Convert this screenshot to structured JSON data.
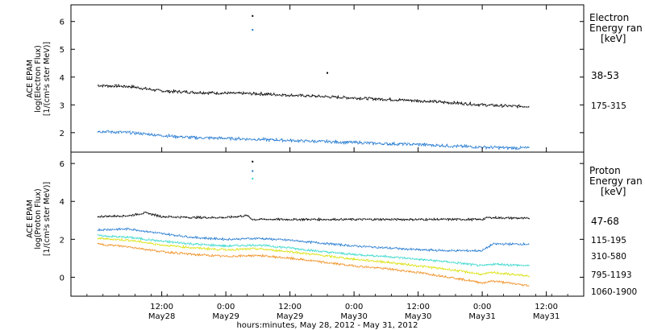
{
  "xaxis": {
    "caption": "hours:minutes, May 28, 2012 - May 31, 2012",
    "range": [
      "2012-05-27T19:00",
      "2012-05-31T19:00"
    ],
    "ticks": [
      {
        "time": "2012-05-28T12:00",
        "time_label": "12:00",
        "date_label": "May28"
      },
      {
        "time": "2012-05-29T00:00",
        "time_label": "0:00",
        "date_label": "May29"
      },
      {
        "time": "2012-05-29T12:00",
        "time_label": "12:00",
        "date_label": "May29"
      },
      {
        "time": "2012-05-30T00:00",
        "time_label": "0:00",
        "date_label": "May30"
      },
      {
        "time": "2012-05-30T12:00",
        "time_label": "12:00",
        "date_label": "May30"
      },
      {
        "time": "2012-05-31T00:00",
        "time_label": "0:00",
        "date_label": "May31"
      },
      {
        "time": "2012-05-31T12:00",
        "time_label": "12:00",
        "date_label": "May31"
      }
    ]
  },
  "chart_data": [
    {
      "type": "line",
      "panel": "electron",
      "ylabel_lines": [
        "ACE EPAM",
        "log(Electron Flux)",
        "[1/(cm²s ster MeV)]"
      ],
      "ylim": [
        1.3,
        6.6
      ],
      "yticks": [
        2,
        3,
        4,
        5,
        6
      ],
      "legend_title_lines": [
        "Electron",
        "Energy ran",
        "[keV]"
      ],
      "series": [
        {
          "name": "38-53",
          "color": "#000000",
          "x": [
            "2012-05-28T00:00",
            "2012-05-28T06:00",
            "2012-05-28T12:00",
            "2012-05-28T18:00",
            "2012-05-29T00:00",
            "2012-05-29T06:00",
            "2012-05-29T12:00",
            "2012-05-29T18:00",
            "2012-05-30T00:00",
            "2012-05-30T06:00",
            "2012-05-30T12:00",
            "2012-05-30T18:00",
            "2012-05-31T00:00",
            "2012-05-31T06:00",
            "2012-05-31T09:00"
          ],
          "y": [
            3.7,
            3.66,
            3.5,
            3.45,
            3.42,
            3.4,
            3.35,
            3.3,
            3.25,
            3.2,
            3.15,
            3.08,
            3.0,
            2.95,
            2.95
          ],
          "spikes": [
            {
              "x": "2012-05-29T05:00",
              "y": 6.2
            },
            {
              "x": "2012-05-29T19:00",
              "y": 4.15
            }
          ]
        },
        {
          "name": "175-315",
          "color": "#1f77d0",
          "x": [
            "2012-05-28T00:00",
            "2012-05-28T06:00",
            "2012-05-28T12:00",
            "2012-05-28T18:00",
            "2012-05-29T00:00",
            "2012-05-29T06:00",
            "2012-05-29T12:00",
            "2012-05-29T18:00",
            "2012-05-30T00:00",
            "2012-05-30T06:00",
            "2012-05-30T12:00",
            "2012-05-30T18:00",
            "2012-05-31T00:00",
            "2012-05-31T06:00",
            "2012-05-31T09:00"
          ],
          "y": [
            2.05,
            2.0,
            1.9,
            1.82,
            1.8,
            1.76,
            1.72,
            1.68,
            1.65,
            1.6,
            1.58,
            1.52,
            1.48,
            1.45,
            1.45
          ],
          "spikes": [
            {
              "x": "2012-05-29T05:00",
              "y": 5.7
            }
          ]
        }
      ]
    },
    {
      "type": "line",
      "panel": "proton",
      "ylabel_lines": [
        "ACE EPAM",
        "log(Proton Flux)",
        "[1/(cm²s ster MeV)]"
      ],
      "ylim": [
        -1.0,
        6.6
      ],
      "yticks": [
        0,
        2,
        4,
        6
      ],
      "legend_title_lines": [
        "Proton",
        "Energy ran",
        "[keV]"
      ],
      "series": [
        {
          "name": "47-68",
          "color": "#000000",
          "x": [
            "2012-05-28T00:00",
            "2012-05-28T06:00",
            "2012-05-28T09:00",
            "2012-05-28T12:00",
            "2012-05-28T18:00",
            "2012-05-29T00:00",
            "2012-05-29T04:00",
            "2012-05-29T05:00",
            "2012-05-29T12:00",
            "2012-05-30T00:00",
            "2012-05-30T12:00",
            "2012-05-31T00:00",
            "2012-05-31T01:00",
            "2012-05-31T09:00"
          ],
          "y": [
            3.2,
            3.25,
            3.4,
            3.2,
            3.15,
            3.15,
            3.25,
            3.05,
            3.05,
            3.05,
            3.05,
            3.05,
            3.15,
            3.1
          ],
          "spikes": [
            {
              "x": "2012-05-29T05:00",
              "y": 6.1
            }
          ]
        },
        {
          "name": "115-195",
          "color": "#1f77d0",
          "x": [
            "2012-05-28T00:00",
            "2012-05-28T06:00",
            "2012-05-28T12:00",
            "2012-05-28T18:00",
            "2012-05-29T00:00",
            "2012-05-29T06:00",
            "2012-05-29T12:00",
            "2012-05-29T18:00",
            "2012-05-30T00:00",
            "2012-05-30T06:00",
            "2012-05-30T12:00",
            "2012-05-30T18:00",
            "2012-05-31T00:00",
            "2012-05-31T02:00",
            "2012-05-31T09:00"
          ],
          "y": [
            2.5,
            2.55,
            2.3,
            2.1,
            2.0,
            2.05,
            1.95,
            1.8,
            1.65,
            1.55,
            1.45,
            1.4,
            1.4,
            1.75,
            1.75
          ],
          "spikes": [
            {
              "x": "2012-05-29T05:00",
              "y": 5.6
            }
          ]
        },
        {
          "name": "310-580",
          "color": "#2ed6c8",
          "x": [
            "2012-05-28T00:00",
            "2012-05-28T06:00",
            "2012-05-28T12:00",
            "2012-05-28T18:00",
            "2012-05-29T00:00",
            "2012-05-29T06:00",
            "2012-05-29T12:00",
            "2012-05-29T18:00",
            "2012-05-30T00:00",
            "2012-05-30T06:00",
            "2012-05-30T12:00",
            "2012-05-30T18:00",
            "2012-05-31T00:00",
            "2012-05-31T02:00",
            "2012-05-31T09:00"
          ],
          "y": [
            2.2,
            2.1,
            1.9,
            1.75,
            1.65,
            1.7,
            1.55,
            1.35,
            1.2,
            1.1,
            0.95,
            0.8,
            0.6,
            0.7,
            0.6
          ],
          "spikes": [
            {
              "x": "2012-05-29T05:00",
              "y": 5.2
            }
          ]
        },
        {
          "name": "795-1193",
          "color": "#d8e000",
          "x": [
            "2012-05-28T00:00",
            "2012-05-28T06:00",
            "2012-05-28T12:00",
            "2012-05-28T18:00",
            "2012-05-29T00:00",
            "2012-05-29T06:00",
            "2012-05-29T12:00",
            "2012-05-29T18:00",
            "2012-05-30T00:00",
            "2012-05-30T06:00",
            "2012-05-30T12:00",
            "2012-05-30T18:00",
            "2012-05-31T00:00",
            "2012-05-31T02:00",
            "2012-05-31T09:00"
          ],
          "y": [
            2.05,
            1.95,
            1.7,
            1.55,
            1.45,
            1.5,
            1.35,
            1.15,
            0.95,
            0.8,
            0.6,
            0.4,
            0.15,
            0.25,
            0.05
          ]
        },
        {
          "name": "1060-1900",
          "color": "#f08c1a",
          "x": [
            "2012-05-28T00:00",
            "2012-05-28T06:00",
            "2012-05-28T12:00",
            "2012-05-28T18:00",
            "2012-05-29T00:00",
            "2012-05-29T06:00",
            "2012-05-29T12:00",
            "2012-05-29T18:00",
            "2012-05-30T00:00",
            "2012-05-30T06:00",
            "2012-05-30T12:00",
            "2012-05-30T18:00",
            "2012-05-31T00:00",
            "2012-05-31T02:00",
            "2012-05-31T09:00"
          ],
          "y": [
            1.75,
            1.6,
            1.35,
            1.2,
            1.1,
            1.15,
            1.0,
            0.8,
            0.6,
            0.45,
            0.25,
            0.0,
            -0.3,
            -0.2,
            -0.45
          ]
        }
      ]
    }
  ]
}
